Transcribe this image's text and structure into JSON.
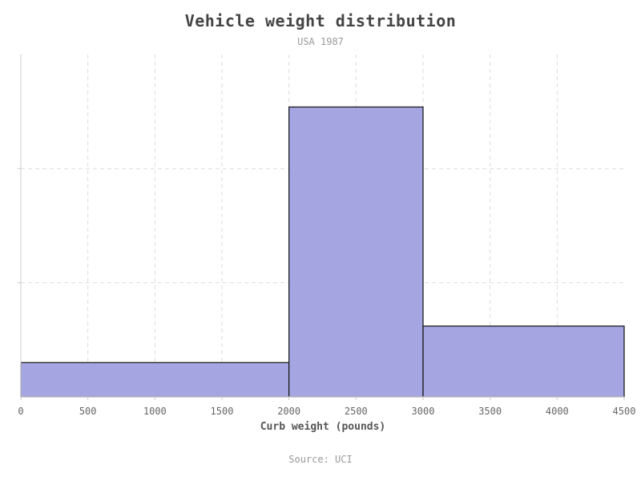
{
  "chart_data": {
    "type": "bar",
    "title": "Vehicle weight distribution",
    "subtitle": "USA 1987",
    "source": "Source: UCI",
    "xlabel": "Curb weight (pounds)",
    "ylabel": "",
    "xlim": [
      0,
      4500
    ],
    "xticks": [
      "0",
      "500",
      "1000",
      "1500",
      "2000",
      "2500",
      "3000",
      "3500",
      "4000",
      "4500"
    ],
    "ylim": [
      0,
      3
    ],
    "y_gridlines": [
      1,
      2
    ],
    "grid": true,
    "bins": [
      {
        "start": 0,
        "end": 2000,
        "value": 0.3
      },
      {
        "start": 2000,
        "end": 3000,
        "value": 2.54
      },
      {
        "start": 3000,
        "end": 4500,
        "value": 0.62
      }
    ],
    "colors": {
      "bar_fill": "#a5a5e1",
      "bar_stroke": "#111111",
      "grid": "#dddddd",
      "axis": "#cccccc"
    }
  }
}
